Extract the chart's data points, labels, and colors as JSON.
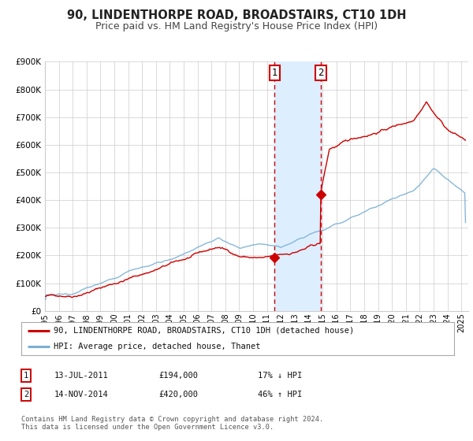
{
  "title": "90, LINDENTHORPE ROAD, BROADSTAIRS, CT10 1DH",
  "subtitle": "Price paid vs. HM Land Registry's House Price Index (HPI)",
  "ylim": [
    0,
    900000
  ],
  "yticks": [
    0,
    100000,
    200000,
    300000,
    400000,
    500000,
    600000,
    700000,
    800000,
    900000
  ],
  "ytick_labels": [
    "£0",
    "£100K",
    "£200K",
    "£300K",
    "£400K",
    "£500K",
    "£600K",
    "£700K",
    "£800K",
    "£900K"
  ],
  "xlim_start": 1995.0,
  "xlim_end": 2025.5,
  "sale1_date": 2011.54,
  "sale1_price": 194000,
  "sale2_date": 2014.87,
  "sale2_price": 420000,
  "red_line_color": "#cc0000",
  "blue_line_color": "#7ab0d4",
  "shade_color": "#ddeeff",
  "grid_color": "#cccccc",
  "background_color": "#ffffff",
  "legend_label_red": "90, LINDENTHORPE ROAD, BROADSTAIRS, CT10 1DH (detached house)",
  "legend_label_blue": "HPI: Average price, detached house, Thanet",
  "annotation1_label": "1",
  "annotation2_label": "2",
  "table_row1": [
    "1",
    "13-JUL-2011",
    "£194,000",
    "17% ↓ HPI"
  ],
  "table_row2": [
    "2",
    "14-NOV-2014",
    "£420,000",
    "46% ↑ HPI"
  ],
  "footer_text": "Contains HM Land Registry data © Crown copyright and database right 2024.\nThis data is licensed under the Open Government Licence v3.0.",
  "title_fontsize": 10.5,
  "subtitle_fontsize": 9
}
